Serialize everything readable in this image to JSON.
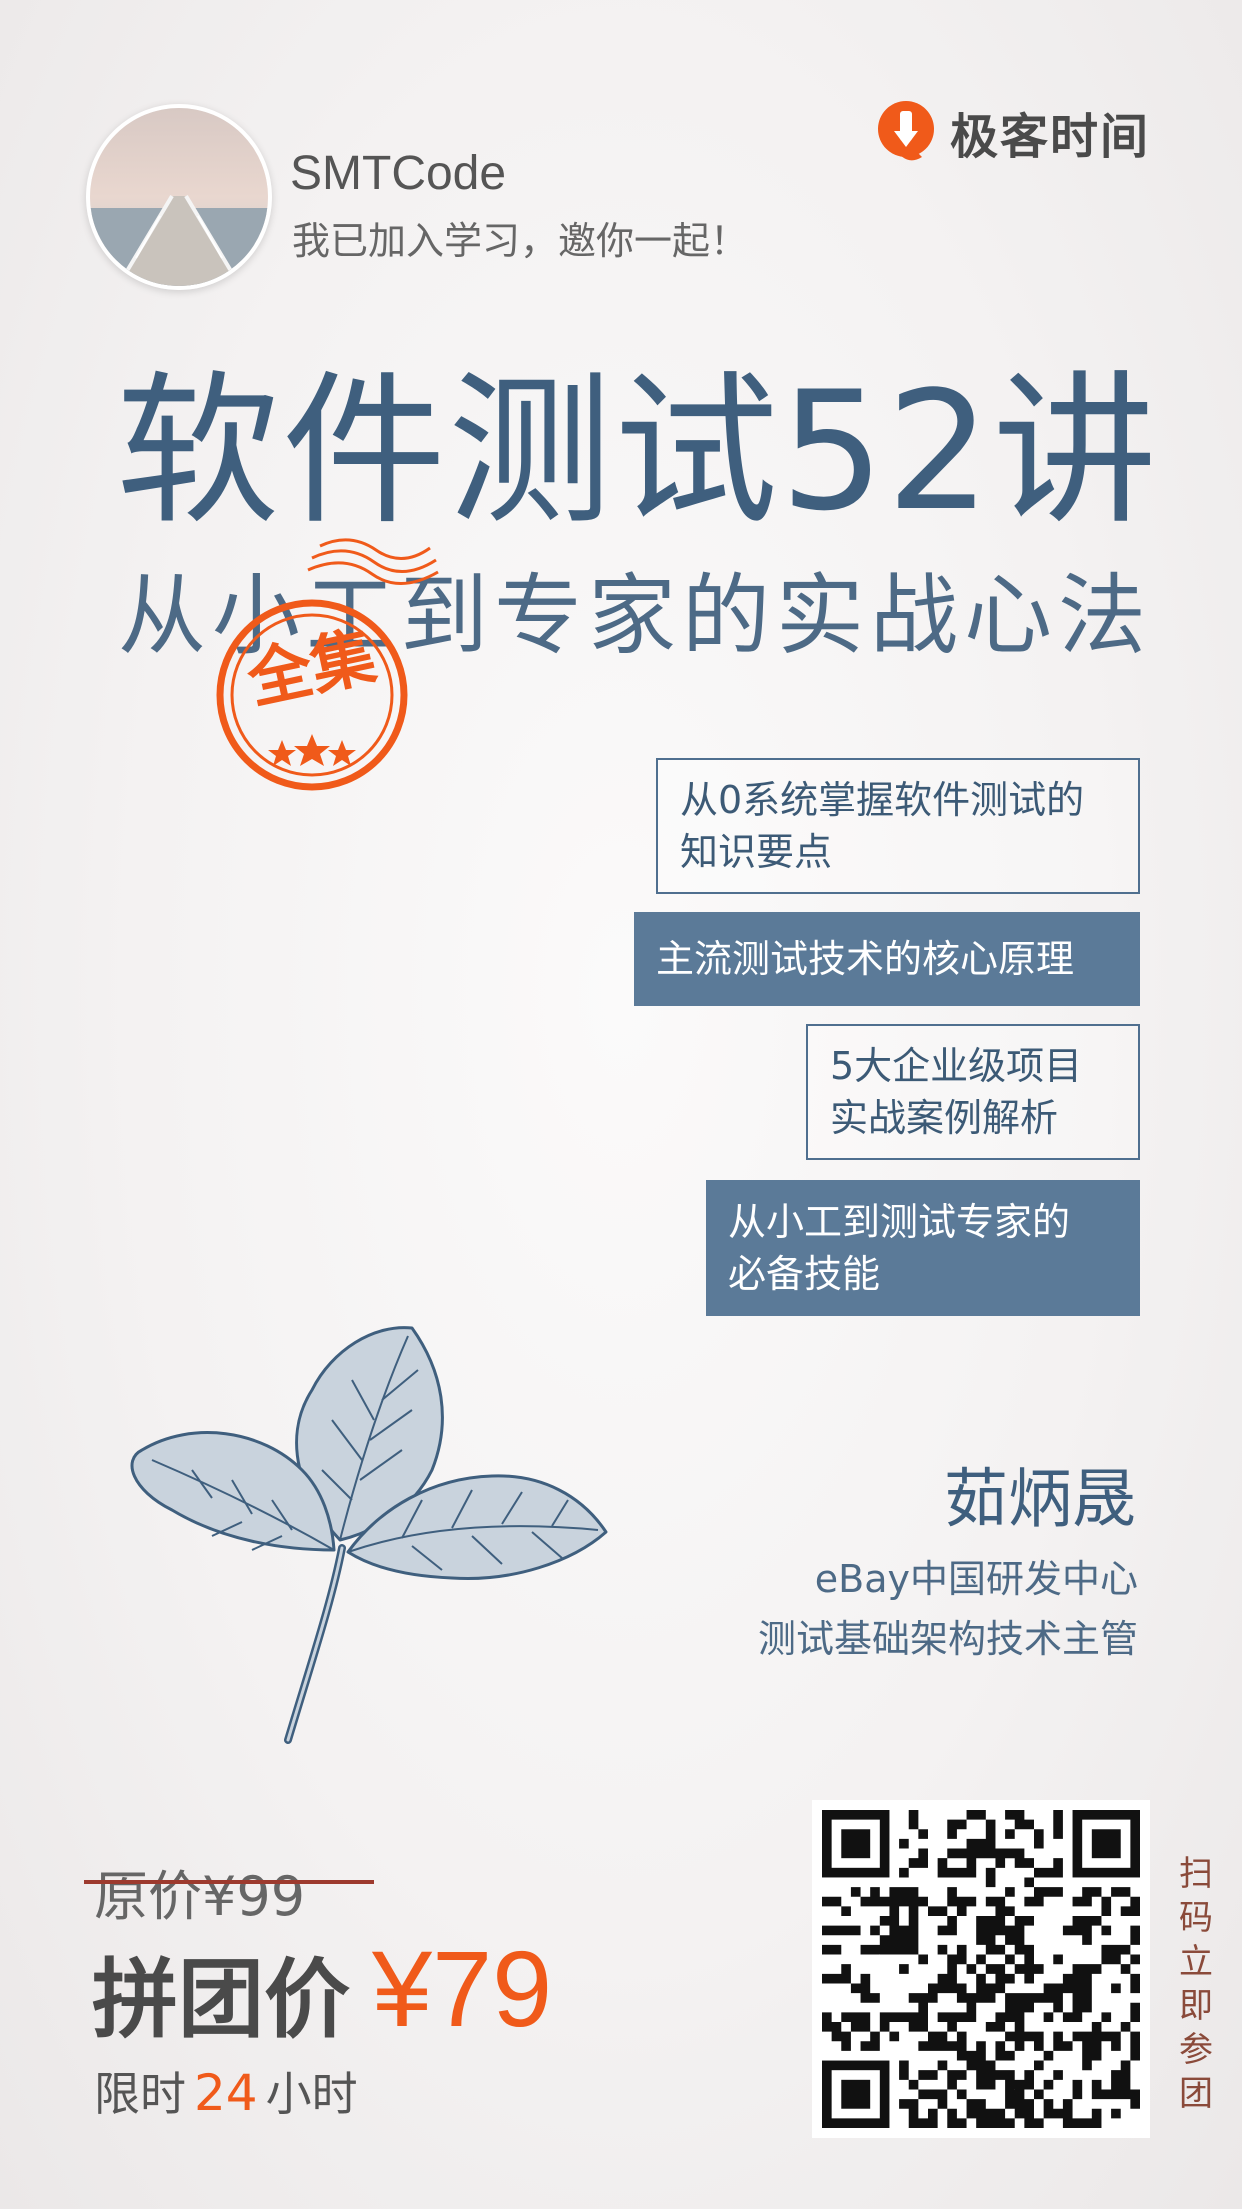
{
  "header": {
    "username": "SMTCode",
    "invite_text": "我已加入学习，邀你一起！",
    "brand_name": "极客时间",
    "brand_color": "#f05a1a"
  },
  "course": {
    "title": "软件测试52讲",
    "subtitle": "从小工到专家的实战心法",
    "stamp_text": "全集",
    "title_color": "#3f5f7e"
  },
  "features": [
    {
      "lines": [
        "从0系统掌握软件测试的",
        "知识要点"
      ]
    },
    {
      "lines": [
        "主流测试技术的核心原理"
      ]
    },
    {
      "lines": [
        "5大企业级项目",
        "实战案例解析"
      ]
    },
    {
      "lines": [
        "从小工到测试专家的",
        "必备技能"
      ]
    }
  ],
  "author": {
    "name": "茹炳晟",
    "org": "eBay中国研发中心",
    "title": "测试基础架构技术主管"
  },
  "price": {
    "original": "原价¥99",
    "group_label": "拼团价",
    "group_value": "¥79",
    "limit_prefix": "限时",
    "limit_hours": "24",
    "limit_suffix": "小时",
    "accent_color": "#f05a1a"
  },
  "qr": {
    "caption": "扫码立即参团"
  }
}
